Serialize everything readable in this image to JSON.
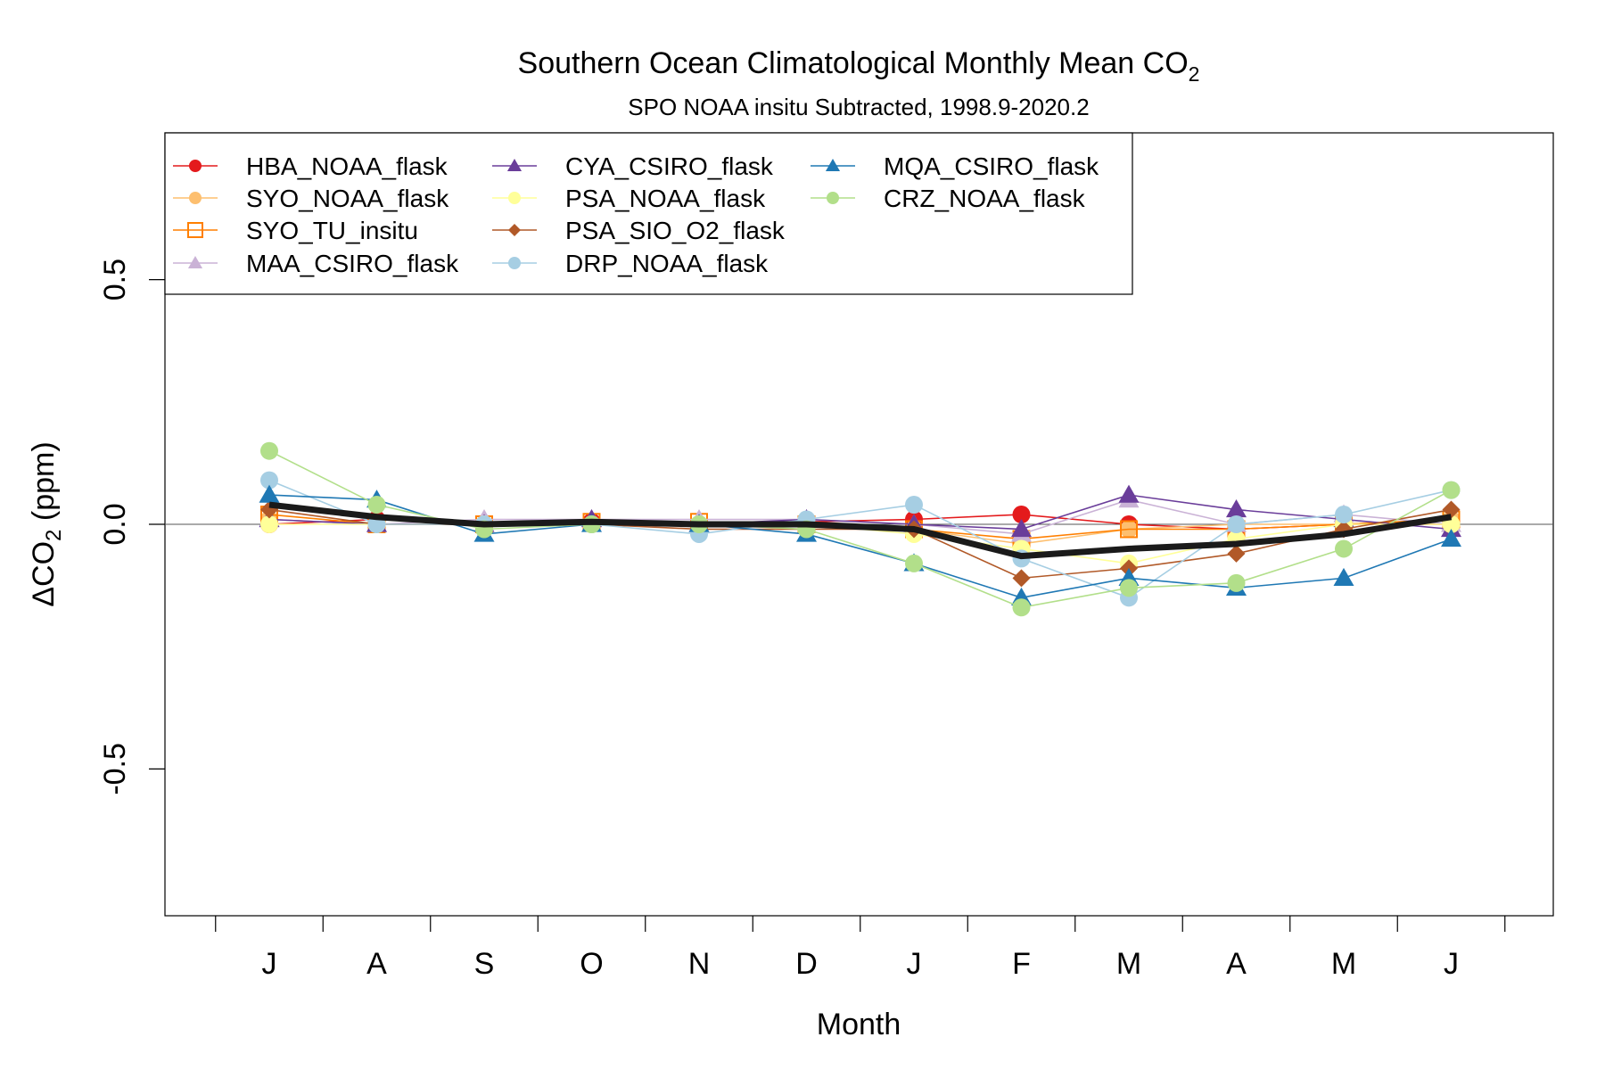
{
  "chart_data": {
    "type": "line",
    "title": "Southern Ocean Climatological Monthly Mean CO",
    "title_subscript": "2",
    "subtitle": "SPO NOAA insitu Subtracted, 1998.9-2020.2",
    "xlabel": "Month",
    "ylabel_prefix": "ΔCO",
    "ylabel_subscript": "2",
    "ylabel_suffix": " (ppm)",
    "categories": [
      "J",
      "A",
      "S",
      "O",
      "N",
      "D",
      "J",
      "F",
      "M",
      "A",
      "M",
      "J"
    ],
    "ylim": [
      -0.8,
      0.8
    ],
    "yticks": [
      -0.5,
      0.0,
      0.5
    ],
    "ytick_labels": [
      "-0.5",
      "0.0",
      "0.5"
    ],
    "reference_line": 0,
    "legend_position": "top-left",
    "series": [
      {
        "name": "HBA_NOAA_flask",
        "color": "#e41a1c",
        "marker": "circle",
        "values": [
          0.0,
          0.01,
          0.0,
          0.005,
          0.0,
          0.005,
          0.01,
          0.02,
          0.0,
          -0.01,
          0.0,
          0.0
        ]
      },
      {
        "name": "SYO_NOAA_flask",
        "color": "#fdbf6f",
        "marker": "circle",
        "values": [
          0.01,
          0.0,
          0.0,
          0.0,
          0.0,
          0.0,
          -0.01,
          -0.04,
          -0.01,
          0.0,
          0.0,
          0.01
        ]
      },
      {
        "name": "SYO_TU_insitu",
        "color": "#ff7f00",
        "marker": "square-open",
        "values": [
          0.02,
          0.0,
          0.0,
          0.005,
          0.005,
          0.0,
          -0.01,
          -0.03,
          -0.01,
          -0.01,
          0.0,
          0.01
        ]
      },
      {
        "name": "MAA_CSIRO_flask",
        "color": "#cab2d6",
        "marker": "triangle",
        "values": [
          0.01,
          0.0,
          0.01,
          0.01,
          0.01,
          0.01,
          0.0,
          -0.02,
          0.05,
          0.0,
          0.02,
          0.0
        ]
      },
      {
        "name": "CYA_CSIRO_flask",
        "color": "#6a3d9a",
        "marker": "triangle",
        "values": [
          0.01,
          0.0,
          0.0,
          0.01,
          0.0,
          0.01,
          0.0,
          -0.01,
          0.06,
          0.03,
          0.01,
          -0.01
        ]
      },
      {
        "name": "PSA_NOAA_flask",
        "color": "#ffff99",
        "marker": "circle",
        "values": [
          0.0,
          0.0,
          0.0,
          0.0,
          0.0,
          0.0,
          -0.02,
          -0.05,
          -0.08,
          -0.03,
          0.0,
          0.0
        ]
      },
      {
        "name": "PSA_SIO_O2_flask",
        "color": "#b15928",
        "marker": "diamond",
        "values": [
          0.03,
          0.0,
          0.0,
          0.0,
          -0.01,
          -0.01,
          -0.01,
          -0.11,
          -0.09,
          -0.06,
          -0.01,
          0.03
        ]
      },
      {
        "name": "DRP_NOAA_flask",
        "color": "#a6cee3",
        "marker": "circle",
        "values": [
          0.09,
          0.0,
          0.0,
          0.0,
          -0.02,
          0.01,
          0.04,
          -0.07,
          -0.15,
          0.0,
          0.02,
          0.07
        ]
      },
      {
        "name": "MQA_CSIRO_flask",
        "color": "#1f78b4",
        "marker": "triangle",
        "values": [
          0.06,
          0.05,
          -0.02,
          0.0,
          0.0,
          -0.02,
          -0.08,
          -0.15,
          -0.11,
          -0.13,
          -0.11,
          -0.03
        ]
      },
      {
        "name": "CRZ_NOAA_flask",
        "color": "#b2df8a",
        "marker": "circle",
        "values": [
          0.15,
          0.04,
          -0.01,
          0.0,
          0.0,
          -0.01,
          -0.08,
          -0.17,
          -0.13,
          -0.12,
          -0.05,
          0.07
        ]
      }
    ],
    "mean_line": {
      "color": "#1a1a1a",
      "values": [
        0.04,
        0.015,
        0.0,
        0.005,
        0.0,
        0.0,
        -0.01,
        -0.065,
        -0.05,
        -0.04,
        -0.02,
        0.015
      ]
    }
  }
}
